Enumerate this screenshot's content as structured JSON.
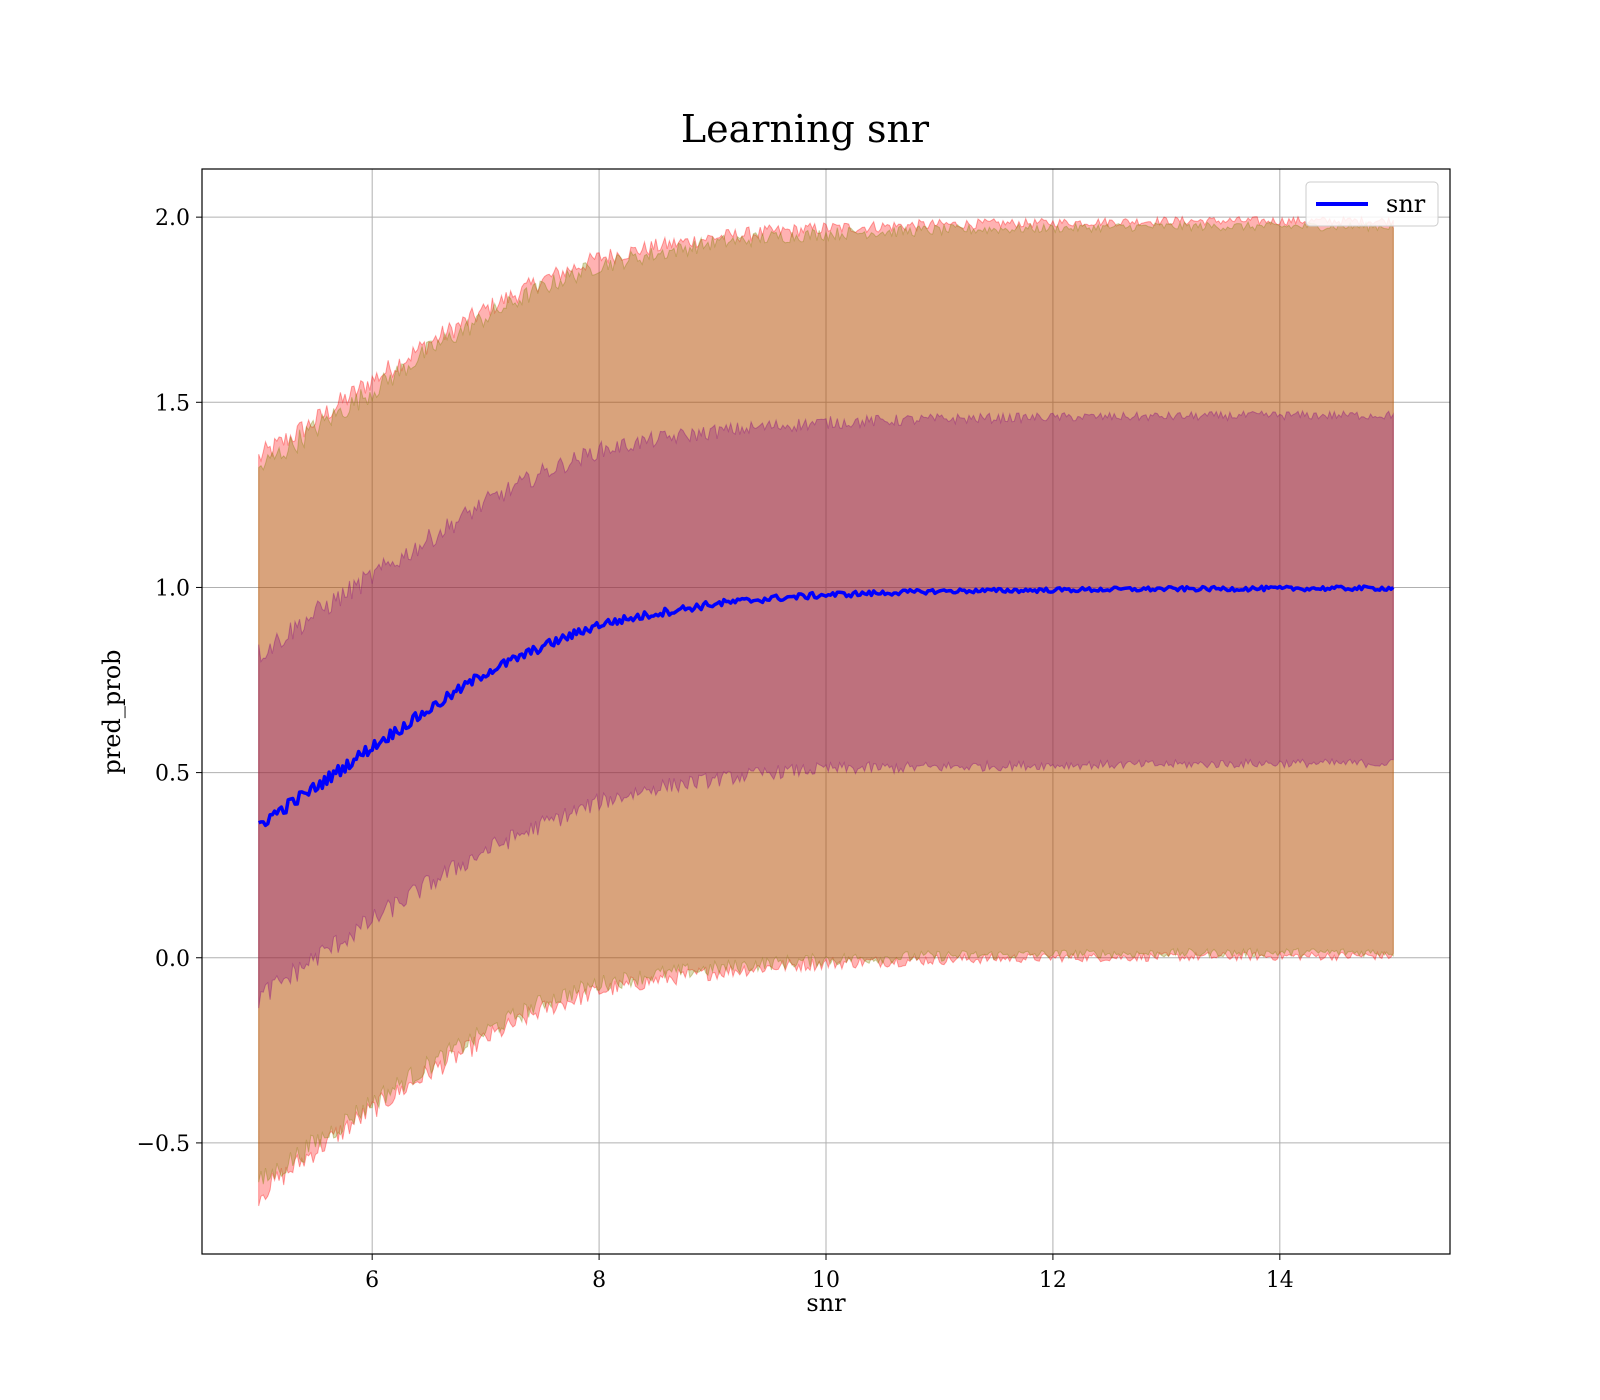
{
  "chart_data": {
    "type": "line",
    "title": "Learning snr",
    "xlabel": "snr",
    "ylabel": "pred_prob",
    "xlim": [
      4.5,
      15.5
    ],
    "ylim": [
      -0.8,
      2.13
    ],
    "x_ticks": [
      {
        "value": 6,
        "label": "6"
      },
      {
        "value": 8,
        "label": "8"
      },
      {
        "value": 10,
        "label": "10"
      },
      {
        "value": 12,
        "label": "12"
      },
      {
        "value": 14,
        "label": "14"
      }
    ],
    "y_ticks": [
      {
        "value": -0.5,
        "label": "−0.5"
      },
      {
        "value": 0.0,
        "label": "0.0"
      },
      {
        "value": 0.5,
        "label": "0.5"
      },
      {
        "value": 1.0,
        "label": "1.0"
      },
      {
        "value": 1.5,
        "label": "1.5"
      },
      {
        "value": 2.0,
        "label": "2.0"
      }
    ],
    "grid": true,
    "legend_position": "top-right",
    "x": [
      5.0,
      5.5,
      6.0,
      6.5,
      7.0,
      7.5,
      8.0,
      8.5,
      9.0,
      9.5,
      10.0,
      11.0,
      12.0,
      13.0,
      14.0,
      15.0
    ],
    "series": [
      {
        "name": "snr",
        "color": "#0000ff",
        "values": [
          0.36,
          0.46,
          0.57,
          0.67,
          0.77,
          0.84,
          0.9,
          0.93,
          0.955,
          0.97,
          0.98,
          0.99,
          0.993,
          0.996,
          0.997,
          0.998
        ]
      }
    ],
    "bands": [
      {
        "color": "#ff0000",
        "opacity": 0.3,
        "lower": [
          -0.64,
          -0.52,
          -0.41,
          -0.31,
          -0.22,
          -0.14,
          -0.09,
          -0.06,
          -0.04,
          -0.025,
          -0.015,
          -0.005,
          0.0,
          0.002,
          0.004,
          0.005
        ],
        "upper": [
          1.35,
          1.45,
          1.56,
          1.66,
          1.75,
          1.83,
          1.89,
          1.92,
          1.945,
          1.96,
          1.97,
          1.98,
          1.985,
          1.99,
          1.99,
          1.99
        ]
      },
      {
        "color": "#808000",
        "opacity": 0.3,
        "lower": [
          -0.61,
          -0.5,
          -0.39,
          -0.29,
          -0.2,
          -0.12,
          -0.07,
          -0.045,
          -0.03,
          -0.015,
          -0.005,
          0.005,
          0.01,
          0.012,
          0.014,
          0.015
        ],
        "upper": [
          1.32,
          1.43,
          1.53,
          1.64,
          1.73,
          1.81,
          1.87,
          1.9,
          1.93,
          1.945,
          1.955,
          1.965,
          1.97,
          1.975,
          1.975,
          1.975
        ]
      },
      {
        "color": "#800080",
        "opacity": 0.3,
        "lower": [
          -0.11,
          0.0,
          0.1,
          0.2,
          0.29,
          0.36,
          0.42,
          0.46,
          0.48,
          0.5,
          0.51,
          0.515,
          0.52,
          0.522,
          0.525,
          0.525
        ],
        "upper": [
          0.82,
          0.93,
          1.03,
          1.13,
          1.23,
          1.31,
          1.37,
          1.4,
          1.42,
          1.435,
          1.445,
          1.455,
          1.46,
          1.462,
          1.465,
          1.465
        ]
      }
    ]
  }
}
